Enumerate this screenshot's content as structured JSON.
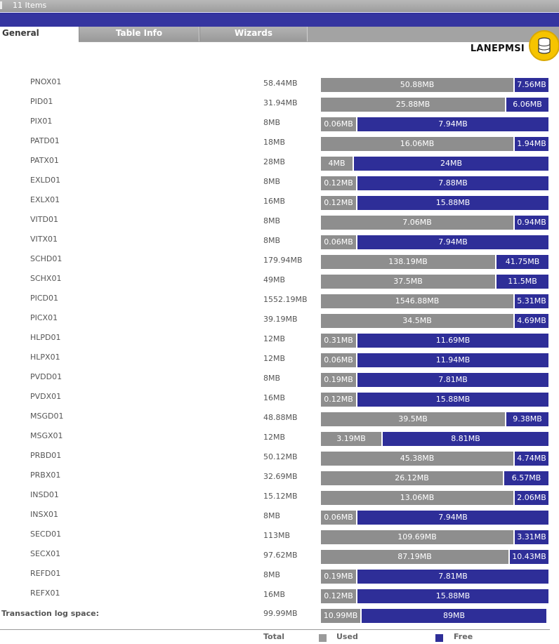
{
  "status": {
    "item_count": "11 Items"
  },
  "tabs": [
    {
      "label": "General",
      "active": true
    },
    {
      "label": "Table Info",
      "active": false
    },
    {
      "label": "Wizards",
      "active": false
    }
  ],
  "database": {
    "name": "LANEPMSI",
    "icon": "database-icon"
  },
  "colors": {
    "used": "#8e8e8e",
    "free": "#2e2e98",
    "tab_bar": "#a3a3a3",
    "title_band": "#3535a0"
  },
  "files": [
    {
      "name": "PNOX01",
      "size": "58.44MB",
      "used": "50.88MB",
      "free": "7.56MB",
      "used_fraction": 0.845
    },
    {
      "name": "PID01",
      "size": "31.94MB",
      "used": "25.88MB",
      "free": "6.06MB",
      "used_fraction": 0.81
    },
    {
      "name": "PIX01",
      "size": "8MB",
      "used": "0.06MB",
      "free": "7.94MB",
      "used_fraction": 0.155
    },
    {
      "name": "PATD01",
      "size": "18MB",
      "used": "16.06MB",
      "free": "1.94MB",
      "used_fraction": 0.845
    },
    {
      "name": "PATX01",
      "size": "28MB",
      "used": "4MB",
      "free": "24MB",
      "used_fraction": 0.14
    },
    {
      "name": "EXLD01",
      "size": "8MB",
      "used": "0.12MB",
      "free": "7.88MB",
      "used_fraction": 0.155
    },
    {
      "name": "EXLX01",
      "size": "16MB",
      "used": "0.12MB",
      "free": "15.88MB",
      "used_fraction": 0.155
    },
    {
      "name": "VITD01",
      "size": "8MB",
      "used": "7.06MB",
      "free": "0.94MB",
      "used_fraction": 0.845
    },
    {
      "name": "VITX01",
      "size": "8MB",
      "used": "0.06MB",
      "free": "7.94MB",
      "used_fraction": 0.155
    },
    {
      "name": "SCHD01",
      "size": "179.94MB",
      "used": "138.19MB",
      "free": "41.75MB",
      "used_fraction": 0.765
    },
    {
      "name": "SCHX01",
      "size": "49MB",
      "used": "37.5MB",
      "free": "11.5MB",
      "used_fraction": 0.765
    },
    {
      "name": "PICD01",
      "size": "1552.19MB",
      "used": "1546.88MB",
      "free": "5.31MB",
      "used_fraction": 0.845
    },
    {
      "name": "PICX01",
      "size": "39.19MB",
      "used": "34.5MB",
      "free": "4.69MB",
      "used_fraction": 0.845
    },
    {
      "name": "HLPD01",
      "size": "12MB",
      "used": "0.31MB",
      "free": "11.69MB",
      "used_fraction": 0.155
    },
    {
      "name": "HLPX01",
      "size": "12MB",
      "used": "0.06MB",
      "free": "11.94MB",
      "used_fraction": 0.155
    },
    {
      "name": "PVDD01",
      "size": "8MB",
      "used": "0.19MB",
      "free": "7.81MB",
      "used_fraction": 0.155
    },
    {
      "name": "PVDX01",
      "size": "16MB",
      "used": "0.12MB",
      "free": "15.88MB",
      "used_fraction": 0.155
    },
    {
      "name": "MSGD01",
      "size": "48.88MB",
      "used": "39.5MB",
      "free": "9.38MB",
      "used_fraction": 0.81
    },
    {
      "name": "MSGX01",
      "size": "12MB",
      "used": "3.19MB",
      "free": "8.81MB",
      "used_fraction": 0.265
    },
    {
      "name": "PRBD01",
      "size": "50.12MB",
      "used": "45.38MB",
      "free": "4.74MB",
      "used_fraction": 0.845
    },
    {
      "name": "PRBX01",
      "size": "32.69MB",
      "used": "26.12MB",
      "free": "6.57MB",
      "used_fraction": 0.8
    },
    {
      "name": "INSD01",
      "size": "15.12MB",
      "used": "13.06MB",
      "free": "2.06MB",
      "used_fraction": 0.845
    },
    {
      "name": "INSX01",
      "size": "8MB",
      "used": "0.06MB",
      "free": "7.94MB",
      "used_fraction": 0.155
    },
    {
      "name": "SECD01",
      "size": "113MB",
      "used": "109.69MB",
      "free": "3.31MB",
      "used_fraction": 0.845
    },
    {
      "name": "SECX01",
      "size": "97.62MB",
      "used": "87.19MB",
      "free": "10.43MB",
      "used_fraction": 0.825
    },
    {
      "name": "REFD01",
      "size": "8MB",
      "used": "0.19MB",
      "free": "7.81MB",
      "used_fraction": 0.155
    },
    {
      "name": "REFX01",
      "size": "16MB",
      "used": "0.12MB",
      "free": "15.88MB",
      "used_fraction": 0.155
    }
  ],
  "transaction_log": {
    "label": "Transaction log space:",
    "size": "99.99MB",
    "used": "10.99MB",
    "free": "89MB",
    "used_fraction": 0.175
  },
  "legend": {
    "total": "Total",
    "used": "Used",
    "free": "Free"
  }
}
